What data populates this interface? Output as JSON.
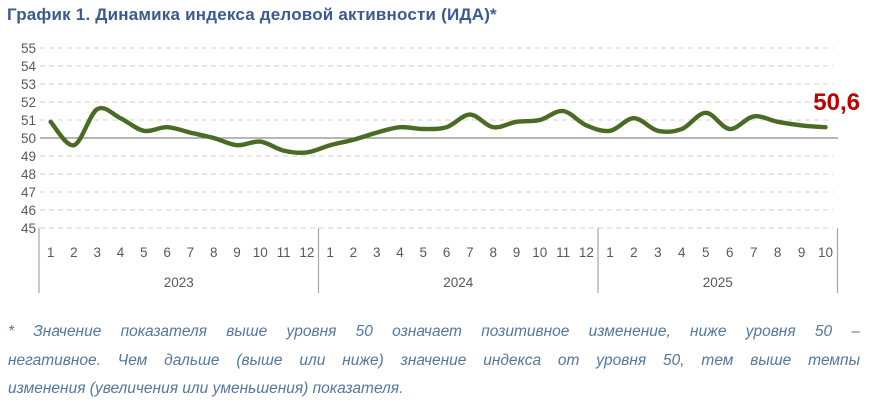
{
  "title": "График 1. Динамика индекса деловой активности (ИДА)*",
  "footnote": {
    "lines": [
      "* Значение показателя выше уровня 50 означает позитивное изменение, ниже уровня 50 –",
      "негативное. Чем дальше (выше или ниже) значение индекса от уровня 50, тем выше темпы",
      "изменения (увеличения или уменьшения) показателя."
    ]
  },
  "colors": {
    "title": "#3A5A90",
    "footnote": "#54779E",
    "line": "#4A6B24",
    "value_label": "#C00000",
    "gridline": "#D9D9D9",
    "baseline50": "#8C8C8C",
    "axis_labels": "#595959",
    "separator": "#A6A6A6"
  },
  "chart_data": {
    "type": "line",
    "title": "Динамика индекса деловой активности (ИДА)",
    "xlabel": "",
    "ylabel": "",
    "ylim": [
      45,
      55
    ],
    "yticks": [
      55,
      54,
      53,
      52,
      51,
      50,
      49,
      48,
      47,
      46,
      45
    ],
    "reference_line": 50,
    "grid": "dashed horizontal, solid line at 50",
    "legend_position": "none",
    "end_label": "50,6",
    "groups": [
      {
        "year": "2023",
        "months": [
          "1",
          "2",
          "3",
          "4",
          "5",
          "6",
          "7",
          "8",
          "9",
          "10",
          "11",
          "12"
        ],
        "values": [
          50.9,
          49.6,
          51.6,
          51.1,
          50.4,
          50.6,
          50.3,
          50.0,
          49.6,
          49.8,
          49.3,
          49.2
        ]
      },
      {
        "year": "2024",
        "months": [
          "1",
          "2",
          "3",
          "4",
          "5",
          "6",
          "7",
          "8",
          "9",
          "10",
          "11",
          "12"
        ],
        "values": [
          49.6,
          49.9,
          50.3,
          50.6,
          50.5,
          50.6,
          51.3,
          50.6,
          50.9,
          51.0,
          51.5,
          50.7
        ]
      },
      {
        "year": "2025",
        "months": [
          "1",
          "2",
          "3",
          "4",
          "5",
          "6",
          "7",
          "8",
          "9",
          "10"
        ],
        "values": [
          50.4,
          51.1,
          50.4,
          50.5,
          51.4,
          50.5,
          51.2,
          50.9,
          50.7,
          50.6
        ]
      }
    ]
  }
}
